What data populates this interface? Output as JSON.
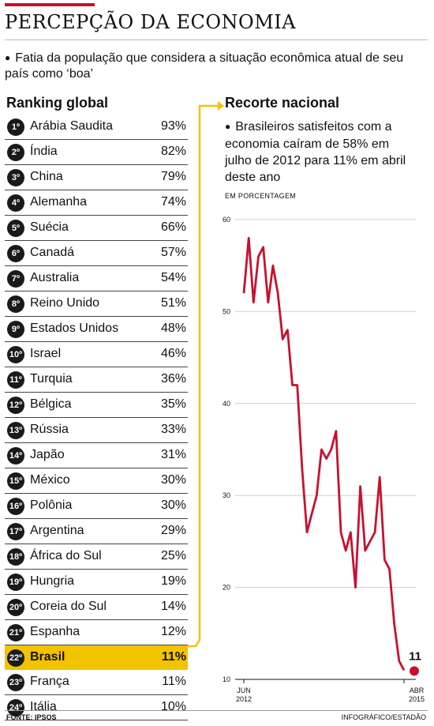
{
  "header": {
    "title": "PERCEPÇÃO DA ECONOMIA",
    "subtitle": "Fatia da população que considera a situação econômica atual de seu país como ‘boa’"
  },
  "ranking": {
    "title": "Ranking global",
    "highlight_color": "#f3c300",
    "items": [
      {
        "rank": "1º",
        "country": "Arábia Saudita",
        "value": "93%"
      },
      {
        "rank": "2º",
        "country": "Índia",
        "value": "82%"
      },
      {
        "rank": "3º",
        "country": "China",
        "value": "79%"
      },
      {
        "rank": "4º",
        "country": "Alemanha",
        "value": "74%"
      },
      {
        "rank": "5º",
        "country": "Suécia",
        "value": "66%"
      },
      {
        "rank": "6º",
        "country": "Canadá",
        "value": "57%"
      },
      {
        "rank": "7º",
        "country": "Australia",
        "value": "54%"
      },
      {
        "rank": "8º",
        "country": "Reino Unido",
        "value": "51%"
      },
      {
        "rank": "9º",
        "country": "Estados Unidos",
        "value": "48%"
      },
      {
        "rank": "10º",
        "country": "Israel",
        "value": "46%"
      },
      {
        "rank": "11º",
        "country": "Turquia",
        "value": "36%"
      },
      {
        "rank": "12º",
        "country": "Bélgica",
        "value": "35%"
      },
      {
        "rank": "13º",
        "country": "Rússia",
        "value": "33%"
      },
      {
        "rank": "14º",
        "country": "Japão",
        "value": "31%"
      },
      {
        "rank": "15º",
        "country": "México",
        "value": "30%"
      },
      {
        "rank": "16º",
        "country": "Polônia",
        "value": "30%"
      },
      {
        "rank": "17º",
        "country": "Argentina",
        "value": "29%"
      },
      {
        "rank": "18º",
        "country": "África do Sul",
        "value": "25%"
      },
      {
        "rank": "19º",
        "country": "Hungria",
        "value": "19%"
      },
      {
        "rank": "20º",
        "country": "Coreia do Sul",
        "value": "14%"
      },
      {
        "rank": "21º",
        "country": "Espanha",
        "value": "12%"
      },
      {
        "rank": "22º",
        "country": "Brasil",
        "value": "11%",
        "highlight": true
      },
      {
        "rank": "23º",
        "country": "França",
        "value": "11%"
      },
      {
        "rank": "24º",
        "country": "Itália",
        "value": "10%"
      }
    ]
  },
  "national": {
    "title": "Recorte nacional",
    "description": "Brasileiros satisfeitos com a economia caíram de 58% em julho de 2012 para 11% em abril deste ano",
    "unit_label": "EM PORCENTAGEM"
  },
  "chart_data": {
    "type": "line",
    "title": "Recorte nacional",
    "ylabel": "EM PORCENTAGEM",
    "ylim": [
      10,
      60
    ],
    "yticks": [
      10,
      20,
      30,
      40,
      50,
      60
    ],
    "x_tick_labels": [
      {
        "month": "JUN",
        "year": "2012"
      },
      {
        "month": "ABR",
        "year": "2015"
      }
    ],
    "grid": true,
    "line_color": "#c8102e",
    "end_label": "11",
    "series": [
      {
        "values": [
          52,
          58,
          51,
          56,
          57,
          51,
          55,
          52,
          47,
          48,
          42,
          42,
          33,
          26,
          28,
          30,
          35,
          34,
          35,
          37,
          26,
          24,
          26,
          20,
          31,
          24,
          25,
          26,
          32,
          23,
          22,
          16,
          12,
          11
        ]
      }
    ]
  },
  "footer": {
    "source_label": "FONTE: IPSOS",
    "credit": "INFOGRÁFICO/ESTADÃO"
  }
}
